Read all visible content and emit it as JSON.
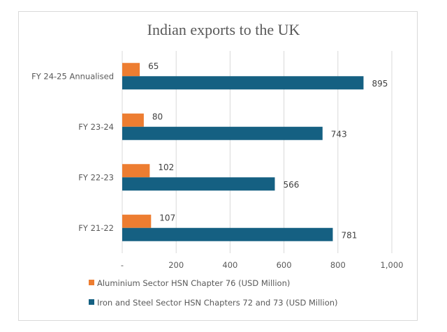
{
  "chart_data": {
    "type": "bar",
    "orientation": "horizontal",
    "title": "Indian exports to the UK",
    "categories": [
      "FY 24-25 Annualised",
      "FY 23-24",
      "FY 22-23",
      "FY 21-22"
    ],
    "series": [
      {
        "name": "Aluminium Sector HSN Chapter 76 (USD Million)",
        "color": "#ED7D31",
        "values": [
          65,
          80,
          102,
          107
        ]
      },
      {
        "name": "Iron and Steel Sector HSN Chapters 72 and 73 (USD Million)",
        "color": "#156082",
        "values": [
          895,
          743,
          566,
          781
        ]
      }
    ],
    "xlim": [
      0,
      1000
    ],
    "xticks": [
      0,
      200,
      400,
      600,
      800,
      1000
    ],
    "xtick_labels": [
      "-",
      "200",
      "400",
      "600",
      "800",
      "1,000"
    ],
    "xlabel": "",
    "ylabel": "",
    "grid": "vertical",
    "legend_position": "bottom-left",
    "data_labels": true
  }
}
